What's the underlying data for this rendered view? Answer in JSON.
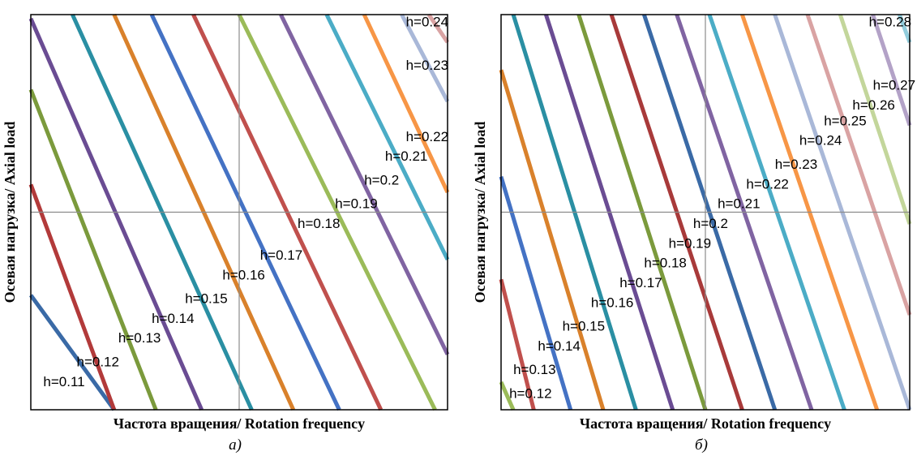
{
  "chart_data": [
    {
      "type": "line",
      "panel_caption": "а)",
      "xlabel": "Частота вращения/ Rotation frequency",
      "ylabel": "Осевая нагрузка/ Axial load",
      "xlim": [
        0,
        1
      ],
      "ylim": [
        0,
        1
      ],
      "grid": "center crosshair",
      "series": [
        {
          "name": "h=0.11",
          "color": "#3a6aa6",
          "x": [
            0.0,
            0.2
          ],
          "y": [
            0.29,
            0.0
          ]
        },
        {
          "name": "h=0.12",
          "color": "#b23a3a",
          "x": [
            0.0,
            0.2
          ],
          "y": [
            0.57,
            0.0
          ]
        },
        {
          "name": "h=0.13",
          "color": "#7b9a3c",
          "x": [
            0.0,
            0.3
          ],
          "y": [
            0.81,
            0.0
          ]
        },
        {
          "name": "h=0.14",
          "color": "#6a4c93",
          "x": [
            0.0,
            0.41
          ],
          "y": [
            0.99,
            0.0
          ]
        },
        {
          "name": "h=0.15",
          "color": "#2a8fa3",
          "x": [
            0.1,
            0.53
          ],
          "y": [
            1.0,
            0.0
          ]
        },
        {
          "name": "h=0.16",
          "color": "#d9812b",
          "x": [
            0.2,
            0.63
          ],
          "y": [
            1.0,
            0.0
          ]
        },
        {
          "name": "h=0.17",
          "color": "#4472c4",
          "x": [
            0.29,
            0.74
          ],
          "y": [
            1.0,
            0.0
          ]
        },
        {
          "name": "h=0.18",
          "color": "#c0504d",
          "x": [
            0.39,
            0.84
          ],
          "y": [
            1.0,
            0.0
          ]
        },
        {
          "name": "h=0.19",
          "color": "#9bbb59",
          "x": [
            0.5,
            0.97
          ],
          "y": [
            1.0,
            0.0
          ]
        },
        {
          "name": "h=0.2",
          "color": "#8064a2",
          "x": [
            0.6,
            1.0
          ],
          "y": [
            1.0,
            0.14
          ]
        },
        {
          "name": "h=0.21",
          "color": "#4bacc6",
          "x": [
            0.71,
            1.0
          ],
          "y": [
            1.0,
            0.38
          ]
        },
        {
          "name": "h=0.22",
          "color": "#f79646",
          "x": [
            0.8,
            1.0
          ],
          "y": [
            1.0,
            0.55
          ]
        },
        {
          "name": "h=0.23",
          "color": "#a9b8d8",
          "x": [
            0.89,
            1.0
          ],
          "y": [
            1.0,
            0.78
          ]
        },
        {
          "name": "h=0.24",
          "color": "#d9a3a3",
          "x": [
            0.955,
            1.0
          ],
          "y": [
            1.0,
            0.93
          ]
        }
      ],
      "labels": [
        {
          "text": "h=0.11",
          "x": 0.03,
          "y": 0.06
        },
        {
          "text": "h=0.12",
          "x": 0.11,
          "y": 0.11
        },
        {
          "text": "h=0.13",
          "x": 0.21,
          "y": 0.17
        },
        {
          "text": "h=0.14",
          "x": 0.29,
          "y": 0.22
        },
        {
          "text": "h=0.15",
          "x": 0.37,
          "y": 0.27
        },
        {
          "text": "h=0.16",
          "x": 0.46,
          "y": 0.33
        },
        {
          "text": "h=0.17",
          "x": 0.55,
          "y": 0.38
        },
        {
          "text": "h=0.18",
          "x": 0.64,
          "y": 0.46
        },
        {
          "text": "h=0.19",
          "x": 0.73,
          "y": 0.51
        },
        {
          "text": "h=0.2",
          "x": 0.8,
          "y": 0.57
        },
        {
          "text": "h=0.21",
          "x": 0.85,
          "y": 0.63
        },
        {
          "text": "h=0.22",
          "x": 0.9,
          "y": 0.68
        },
        {
          "text": "h=0.23",
          "x": 0.9,
          "y": 0.86
        },
        {
          "text": "h=0.24",
          "x": 0.9,
          "y": 0.97
        }
      ]
    },
    {
      "type": "line",
      "panel_caption": "б)",
      "xlabel": "Частота вращения/ Rotation frequency",
      "ylabel": "Осевая нагрузка/ Axial load",
      "xlim": [
        0,
        1
      ],
      "ylim": [
        0,
        1
      ],
      "grid": "center crosshair",
      "series": [
        {
          "name": "h=0.12",
          "color": "#9bbb59",
          "x": [
            0.0,
            0.03
          ],
          "y": [
            0.07,
            0.0
          ]
        },
        {
          "name": "h=0.13",
          "color": "#c0504d",
          "x": [
            0.0,
            0.08
          ],
          "y": [
            0.33,
            0.0
          ]
        },
        {
          "name": "h=0.14",
          "color": "#4472c4",
          "x": [
            0.0,
            0.17
          ],
          "y": [
            0.59,
            0.0
          ]
        },
        {
          "name": "h=0.15",
          "color": "#d9812b",
          "x": [
            0.0,
            0.25
          ],
          "y": [
            0.86,
            0.0
          ]
        },
        {
          "name": "h=0.16",
          "color": "#2a8fa3",
          "x": [
            0.03,
            0.33
          ],
          "y": [
            1.0,
            0.0
          ]
        },
        {
          "name": "h=0.17",
          "color": "#6a4c93",
          "x": [
            0.11,
            0.42
          ],
          "y": [
            1.0,
            0.0
          ]
        },
        {
          "name": "h=0.18",
          "color": "#7b9a3c",
          "x": [
            0.19,
            0.5
          ],
          "y": [
            1.0,
            0.0
          ]
        },
        {
          "name": "h=0.19",
          "color": "#a83a3a",
          "x": [
            0.27,
            0.59
          ],
          "y": [
            1.0,
            0.0
          ]
        },
        {
          "name": "h=0.2",
          "color": "#3a6aa6",
          "x": [
            0.35,
            0.67
          ],
          "y": [
            1.0,
            0.0
          ]
        },
        {
          "name": "h=0.21",
          "color": "#8064a2",
          "x": [
            0.43,
            0.76
          ],
          "y": [
            1.0,
            0.0
          ]
        },
        {
          "name": "h=0.22",
          "color": "#4bacc6",
          "x": [
            0.51,
            0.84
          ],
          "y": [
            1.0,
            0.0
          ]
        },
        {
          "name": "h=0.23",
          "color": "#f79646",
          "x": [
            0.59,
            0.92
          ],
          "y": [
            1.0,
            0.0
          ]
        },
        {
          "name": "h=0.24",
          "color": "#a9b8d8",
          "x": [
            0.67,
            1.0
          ],
          "y": [
            1.0,
            0.0
          ]
        },
        {
          "name": "h=0.25",
          "color": "#d9a3a3",
          "x": [
            0.75,
            1.0
          ],
          "y": [
            1.0,
            0.24
          ]
        },
        {
          "name": "h=0.26",
          "color": "#c3d69b",
          "x": [
            0.83,
            1.0
          ],
          "y": [
            1.0,
            0.47
          ]
        },
        {
          "name": "h=0.27",
          "color": "#b3a2c7",
          "x": [
            0.91,
            1.0
          ],
          "y": [
            1.0,
            0.72
          ]
        },
        {
          "name": "h=0.28",
          "color": "#92cddc",
          "x": [
            0.975,
            1.0
          ],
          "y": [
            1.0,
            0.93
          ]
        }
      ],
      "labels": [
        {
          "text": "h=0.12",
          "x": 0.02,
          "y": 0.03
        },
        {
          "text": "h=0.13",
          "x": 0.03,
          "y": 0.09
        },
        {
          "text": "h=0.14",
          "x": 0.09,
          "y": 0.15
        },
        {
          "text": "h=0.15",
          "x": 0.15,
          "y": 0.2
        },
        {
          "text": "h=0.16",
          "x": 0.22,
          "y": 0.26
        },
        {
          "text": "h=0.17",
          "x": 0.29,
          "y": 0.31
        },
        {
          "text": "h=0.18",
          "x": 0.35,
          "y": 0.36
        },
        {
          "text": "h=0.19",
          "x": 0.41,
          "y": 0.41
        },
        {
          "text": "h=0.2",
          "x": 0.47,
          "y": 0.46
        },
        {
          "text": "h=0.21",
          "x": 0.53,
          "y": 0.51
        },
        {
          "text": "h=0.22",
          "x": 0.6,
          "y": 0.56
        },
        {
          "text": "h=0.23",
          "x": 0.67,
          "y": 0.61
        },
        {
          "text": "h=0.24",
          "x": 0.73,
          "y": 0.67
        },
        {
          "text": "h=0.25",
          "x": 0.79,
          "y": 0.72
        },
        {
          "text": "h=0.26",
          "x": 0.86,
          "y": 0.76
        },
        {
          "text": "h=0.27",
          "x": 0.91,
          "y": 0.81
        },
        {
          "text": "h=0.28",
          "x": 0.9,
          "y": 0.97
        }
      ]
    }
  ]
}
